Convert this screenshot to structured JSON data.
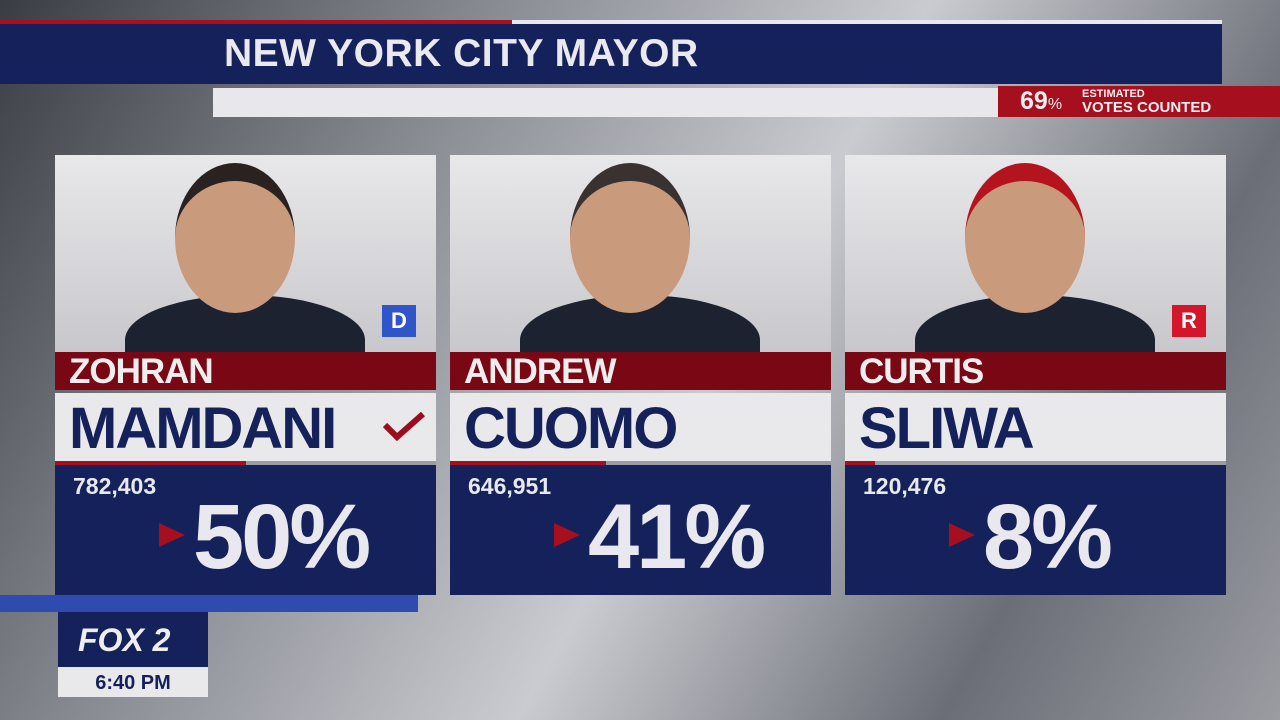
{
  "title": "NEW YORK CITY MAYOR",
  "votes_counted": {
    "percent": "69",
    "percent_sign": "%",
    "label_top": "ESTIMATED",
    "label_bottom": "VOTES COUNTED"
  },
  "candidates": [
    {
      "first": "ZOHRAN",
      "last": "MAMDANI",
      "party": "D",
      "party_color": "#2f55c8",
      "votes": "782,403",
      "percent": "50%",
      "share": 50,
      "winner": true
    },
    {
      "first": "ANDREW",
      "last": "CUOMO",
      "party": "",
      "party_color": "",
      "votes": "646,951",
      "percent": "41%",
      "share": 41,
      "winner": false
    },
    {
      "first": "CURTIS",
      "last": "SLIWA",
      "party": "R",
      "party_color": "#d3162a",
      "votes": "120,476",
      "percent": "8%",
      "share": 8,
      "winner": false
    }
  ],
  "station": {
    "logo": "FOX 2",
    "time": "6:40 PM"
  },
  "colors": {
    "navy": "#15215a",
    "red": "#a50f1e",
    "dark_red": "#7a0814"
  }
}
